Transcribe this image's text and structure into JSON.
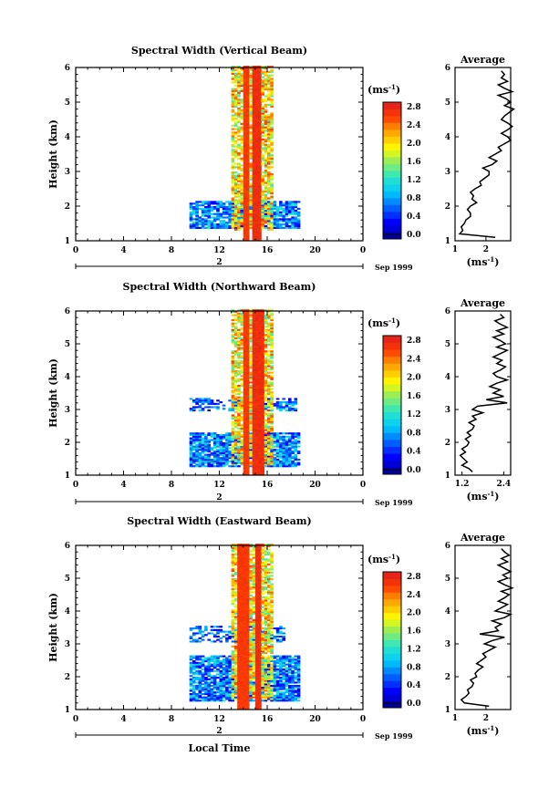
{
  "chart_data": [
    {
      "type": "heatmap",
      "title": "Spectral Width (Vertical Beam)",
      "ylabel": "Height (km)",
      "xticks": [
        "0",
        "4",
        "8",
        "12",
        "16",
        "20",
        "0"
      ],
      "yticks": [
        "1",
        "2",
        "3",
        "4",
        "5",
        "6"
      ],
      "day_label": "2",
      "date_label": "Sep 1999",
      "colorbar": {
        "unit": "(ms",
        "unit_exp": "-1",
        "unit_close": ")",
        "ticks": [
          "2.8",
          "2.4",
          "2.0",
          "1.6",
          "1.2",
          "0.8",
          "0.4",
          "0.0"
        ],
        "range": [
          0,
          3.0
        ]
      },
      "xlim": [
        0,
        24
      ],
      "ylim": [
        1,
        6
      ],
      "pattern": {
        "columns": [
          {
            "start": 13.8,
            "end": 14.3,
            "width": 2.8
          },
          {
            "start": 14.7,
            "end": 15.5,
            "width": 2.9
          }
        ],
        "lower_block": {
          "t": [
            9.3,
            18.7
          ],
          "h": [
            1.35,
            2.15
          ]
        },
        "upper_block": null
      },
      "average": {
        "title": "Average",
        "xticks": [
          "1",
          "2"
        ],
        "xlim": [
          1,
          2.8
        ],
        "xlabel": "(ms",
        "xlabel_exp": "-1",
        "xlabel_close": ")",
        "yticks": [
          "1",
          "2",
          "3",
          "4",
          "5",
          "6"
        ],
        "ylim": [
          1,
          6
        ],
        "heights": [
          1.1,
          1.2,
          1.3,
          1.4,
          1.5,
          1.6,
          1.7,
          1.8,
          1.9,
          2.0,
          2.1,
          2.2,
          2.3,
          2.4,
          2.5,
          2.6,
          2.7,
          2.8,
          2.9,
          3.0,
          3.1,
          3.2,
          3.3,
          3.4,
          3.5,
          3.6,
          3.7,
          3.8,
          3.9,
          4.0,
          4.1,
          4.2,
          4.3,
          4.4,
          4.5,
          4.6,
          4.7,
          4.8,
          4.9,
          5.0,
          5.1,
          5.2,
          5.3,
          5.4,
          5.5,
          5.6,
          5.7,
          5.8,
          5.9
        ],
        "values": [
          2.3,
          1.15,
          1.25,
          1.2,
          1.3,
          1.35,
          1.5,
          1.5,
          1.4,
          1.5,
          1.7,
          1.55,
          1.6,
          1.5,
          1.65,
          1.85,
          1.8,
          1.95,
          2.1,
          2.1,
          1.9,
          2.2,
          2.35,
          2.1,
          2.3,
          2.5,
          2.4,
          2.6,
          2.8,
          2.7,
          2.5,
          2.7,
          2.85,
          2.7,
          2.5,
          2.6,
          2.75,
          2.9,
          2.6,
          2.8,
          2.65,
          2.4,
          2.85,
          2.6,
          2.4,
          2.7,
          2.5,
          2.6,
          2.5
        ]
      }
    },
    {
      "type": "heatmap",
      "title": "Spectral Width (Northward Beam)",
      "ylabel": "Height (km)",
      "xticks": [
        "0",
        "4",
        "8",
        "12",
        "16",
        "20",
        "0"
      ],
      "yticks": [
        "1",
        "2",
        "3",
        "4",
        "5",
        "6"
      ],
      "day_label": "2",
      "date_label": "Sep 1999",
      "colorbar": {
        "unit": "(ms",
        "unit_exp": "-1",
        "unit_close": ")",
        "ticks": [
          "2.8",
          "2.4",
          "2.0",
          "1.6",
          "1.2",
          "0.8",
          "0.4",
          "0.0"
        ],
        "range": [
          0,
          3.0
        ]
      },
      "xlim": [
        0,
        24
      ],
      "ylim": [
        1,
        6
      ],
      "pattern": {
        "columns": [
          {
            "start": 13.8,
            "end": 14.5,
            "width": 2.8
          },
          {
            "start": 14.7,
            "end": 15.6,
            "width": 2.9
          }
        ],
        "lower_block": {
          "t": [
            9.5,
            18.7
          ],
          "h": [
            1.25,
            2.3
          ]
        },
        "upper_block": {
          "t": [
            9.5,
            18.5
          ],
          "h": [
            2.9,
            3.3
          ]
        }
      },
      "average": {
        "title": "Average",
        "xticks": [
          "1.2",
          "2.4"
        ],
        "xlim": [
          1,
          2.6
        ],
        "xlabel": "(ms",
        "xlabel_exp": "-1",
        "xlabel_close": ")",
        "yticks": [
          "1",
          "2",
          "3",
          "4",
          "5",
          "6"
        ],
        "ylim": [
          1,
          6
        ],
        "heights": [
          1.1,
          1.2,
          1.3,
          1.4,
          1.5,
          1.6,
          1.7,
          1.8,
          1.9,
          2.0,
          2.1,
          2.2,
          2.3,
          2.4,
          2.5,
          2.6,
          2.7,
          2.8,
          2.9,
          3.0,
          3.1,
          3.2,
          3.3,
          3.4,
          3.5,
          3.6,
          3.7,
          3.8,
          3.9,
          4.0,
          4.1,
          4.2,
          4.3,
          4.4,
          4.5,
          4.6,
          4.7,
          4.8,
          4.9,
          5.0,
          5.1,
          5.2,
          5.3,
          5.4,
          5.5,
          5.6,
          5.7,
          5.8,
          5.9
        ],
        "values": [
          1.5,
          1.4,
          1.2,
          1.35,
          1.25,
          1.15,
          1.3,
          1.2,
          1.35,
          1.4,
          1.3,
          1.45,
          1.35,
          1.5,
          1.55,
          1.4,
          1.6,
          1.5,
          1.8,
          1.5,
          1.65,
          2.5,
          1.9,
          2.4,
          2.1,
          2.3,
          2.0,
          2.2,
          2.5,
          2.2,
          2.1,
          2.3,
          2.45,
          2.2,
          2.35,
          2.1,
          2.3,
          2.5,
          2.2,
          2.45,
          2.3,
          2.1,
          2.4,
          2.2,
          2.5,
          2.3,
          2.15,
          2.4,
          2.3
        ]
      }
    },
    {
      "type": "heatmap",
      "title": "Spectral Width (Eastward Beam)",
      "ylabel": "Height (km)",
      "xlabel": "Local Time",
      "xticks": [
        "0",
        "4",
        "8",
        "12",
        "16",
        "20",
        "0"
      ],
      "yticks": [
        "1",
        "2",
        "3",
        "4",
        "5",
        "6"
      ],
      "day_label": "2",
      "date_label": "Sep 1999",
      "colorbar": {
        "unit": "(ms",
        "unit_exp": "-1",
        "unit_close": ")",
        "ticks": [
          "2.8",
          "2.4",
          "2.0",
          "1.6",
          "1.2",
          "0.8",
          "0.4",
          "0.0"
        ],
        "range": [
          0,
          3.0
        ]
      },
      "xlim": [
        0,
        24
      ],
      "ylim": [
        1,
        6
      ],
      "pattern": {
        "columns": [
          {
            "start": 13.5,
            "end": 14.3,
            "width": 2.8
          },
          {
            "start": 14.9,
            "end": 15.5,
            "width": 2.9
          }
        ],
        "lower_block": {
          "t": [
            9.5,
            18.7
          ],
          "h": [
            1.25,
            2.6
          ]
        },
        "upper_block": {
          "t": [
            9.5,
            17.5
          ],
          "h": [
            3.0,
            3.5
          ]
        }
      },
      "average": {
        "title": "Average",
        "xticks": [
          "1",
          "2"
        ],
        "xlim": [
          1,
          2.8
        ],
        "xlabel": "(ms",
        "xlabel_exp": "-1",
        "xlabel_close": ")",
        "yticks": [
          "1",
          "2",
          "3",
          "4",
          "5",
          "6"
        ],
        "ylim": [
          1,
          6
        ],
        "heights": [
          1.1,
          1.2,
          1.3,
          1.4,
          1.5,
          1.6,
          1.7,
          1.8,
          1.9,
          2.0,
          2.1,
          2.2,
          2.3,
          2.4,
          2.5,
          2.6,
          2.7,
          2.8,
          2.9,
          3.0,
          3.1,
          3.2,
          3.3,
          3.4,
          3.5,
          3.6,
          3.7,
          3.8,
          3.9,
          4.0,
          4.1,
          4.2,
          4.3,
          4.4,
          4.5,
          4.6,
          4.7,
          4.8,
          4.9,
          5.0,
          5.1,
          5.2,
          5.3,
          5.4,
          5.5,
          5.6,
          5.7,
          5.8,
          5.9
        ],
        "values": [
          2.1,
          1.3,
          1.2,
          1.35,
          1.45,
          1.4,
          1.55,
          1.6,
          1.5,
          1.7,
          1.65,
          1.75,
          1.9,
          1.7,
          1.85,
          2.0,
          1.9,
          2.1,
          2.3,
          1.95,
          2.2,
          2.6,
          1.8,
          2.4,
          2.3,
          2.5,
          2.2,
          2.6,
          2.8,
          2.3,
          2.5,
          2.7,
          2.4,
          2.6,
          2.75,
          2.5,
          2.85,
          2.6,
          2.4,
          2.7,
          2.55,
          2.8,
          2.6,
          2.4,
          2.7,
          2.5,
          2.75,
          2.6,
          2.5
        ]
      }
    }
  ]
}
